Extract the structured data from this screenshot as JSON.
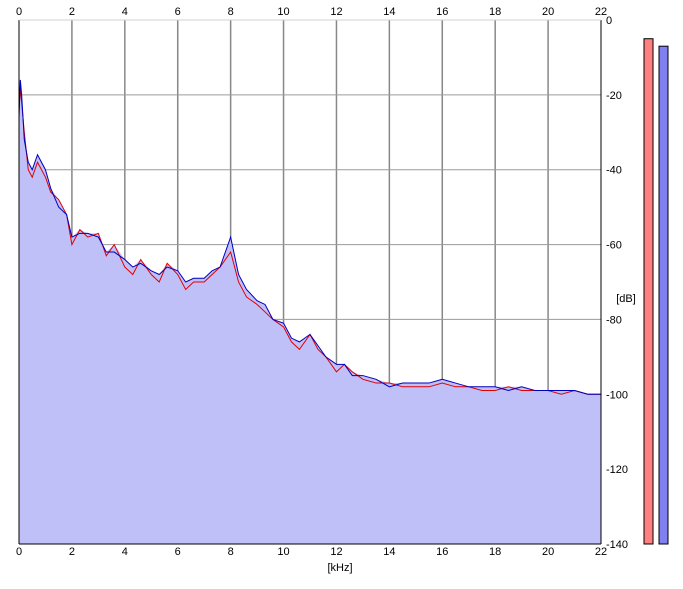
{
  "chart_data": {
    "type": "area",
    "xlabel": "[kHz]",
    "ylabel": "[dB]",
    "xlim": [
      0,
      22
    ],
    "ylim": [
      -140,
      0
    ],
    "x_ticks": [
      "0",
      "2",
      "4",
      "6",
      "8",
      "10",
      "12",
      "14",
      "16",
      "18",
      "20",
      "22"
    ],
    "y_ticks": [
      "0",
      "-20",
      "-40",
      "-60",
      "-80",
      "-100",
      "-120",
      "-140"
    ],
    "grid": true,
    "fill_color": "#c0c0f8",
    "series": [
      {
        "color": "#e00000",
        "x": [
          0,
          0.05,
          0.1,
          0.2,
          0.35,
          0.5,
          0.7,
          1,
          1.2,
          1.5,
          1.8,
          2,
          2.3,
          2.6,
          3,
          3.3,
          3.6,
          4,
          4.3,
          4.6,
          5,
          5.3,
          5.6,
          6,
          6.3,
          6.6,
          7,
          7.3,
          7.6,
          8,
          8.3,
          8.6,
          9,
          9.3,
          9.6,
          10,
          10.3,
          10.6,
          11,
          11.3,
          11.6,
          12,
          12.3,
          12.6,
          13,
          13.5,
          14,
          14.5,
          15,
          15.5,
          16,
          16.5,
          17,
          17.5,
          18,
          18.5,
          19,
          19.5,
          20,
          20.5,
          21,
          21.5,
          22
        ],
        "y": [
          -24,
          -18,
          -22,
          -30,
          -40,
          -42,
          -38,
          -42,
          -46,
          -48,
          -52,
          -60,
          -56,
          -58,
          -57,
          -63,
          -60,
          -66,
          -68,
          -64,
          -68,
          -70,
          -65,
          -68,
          -72,
          -70,
          -70,
          -68,
          -66,
          -62,
          -70,
          -74,
          -76,
          -78,
          -80,
          -82,
          -86,
          -88,
          -84,
          -88,
          -90,
          -94,
          -92,
          -94,
          -96,
          -97,
          -97,
          -98,
          -98,
          -98,
          -97,
          -98,
          -98,
          -99,
          -99,
          -98,
          -99,
          -99,
          -99,
          -100,
          -99,
          -100,
          -100
        ]
      },
      {
        "color": "#0000c0",
        "x": [
          0,
          0.05,
          0.1,
          0.2,
          0.35,
          0.5,
          0.7,
          1,
          1.2,
          1.5,
          1.8,
          2,
          2.3,
          2.6,
          3,
          3.3,
          3.6,
          4,
          4.3,
          4.6,
          5,
          5.3,
          5.6,
          6,
          6.3,
          6.6,
          7,
          7.3,
          7.6,
          8,
          8.3,
          8.6,
          9,
          9.3,
          9.6,
          10,
          10.3,
          10.6,
          11,
          11.3,
          11.6,
          12,
          12.3,
          12.6,
          13,
          13.5,
          14,
          14.5,
          15,
          15.5,
          16,
          16.5,
          17,
          17.5,
          18,
          18.5,
          19,
          19.5,
          20,
          20.5,
          21,
          21.5,
          22
        ],
        "y": [
          -26,
          -16,
          -20,
          -32,
          -38,
          -40,
          -36,
          -40,
          -45,
          -50,
          -52,
          -58,
          -57,
          -57,
          -58,
          -62,
          -62,
          -64,
          -66,
          -65,
          -67,
          -68,
          -66,
          -67,
          -70,
          -69,
          -69,
          -67,
          -66,
          -58,
          -68,
          -72,
          -75,
          -76,
          -80,
          -81,
          -85,
          -86,
          -84,
          -87,
          -90,
          -92,
          -92,
          -95,
          -95,
          -96,
          -98,
          -97,
          -97,
          -97,
          -96,
          -97,
          -98,
          -98,
          -98,
          -99,
          -98,
          -99,
          -99,
          -99,
          -99,
          -100,
          -100
        ]
      }
    ],
    "level_meters": [
      {
        "color": "#ff8080",
        "level_db": -5
      },
      {
        "color": "#8080f0",
        "level_db": -7
      }
    ]
  }
}
